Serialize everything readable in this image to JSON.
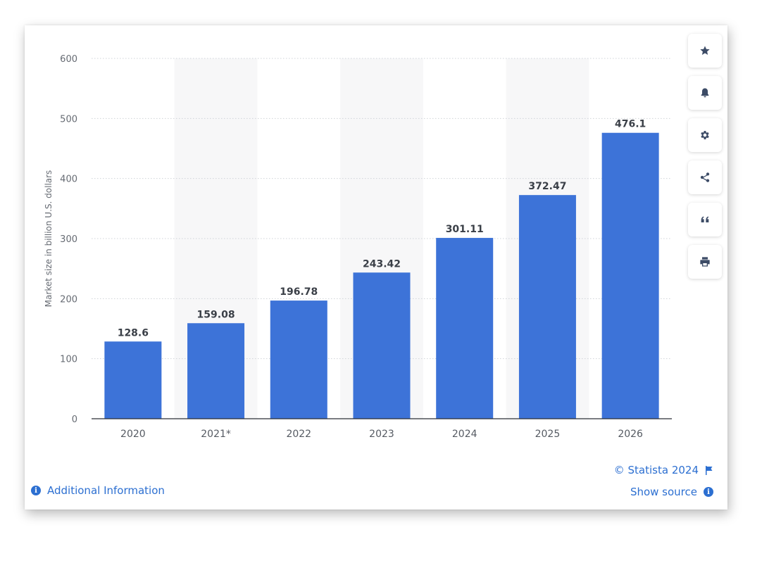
{
  "chart_data": {
    "type": "bar",
    "categories": [
      "2020",
      "2021*",
      "2022",
      "2023",
      "2024",
      "2025",
      "2026"
    ],
    "values": [
      128.6,
      159.08,
      196.78,
      243.42,
      301.11,
      372.47,
      476.1
    ],
    "value_labels": [
      "128.6",
      "159.08",
      "196.78",
      "243.42",
      "301.11",
      "372.47",
      "476.1"
    ],
    "title": "",
    "xlabel": "",
    "ylabel": "Market size in billion U.S. dollars",
    "ylim": [
      0,
      600
    ],
    "yticks": [
      0,
      100,
      200,
      300,
      400,
      500,
      600
    ],
    "grid": true,
    "bar_color": "#3d73d8",
    "band_color": "#f7f7f8"
  },
  "sidebar": {
    "buttons": [
      {
        "icon": "star-icon",
        "name": "favorite-button"
      },
      {
        "icon": "bell-icon",
        "name": "notification-button"
      },
      {
        "icon": "gear-icon",
        "name": "settings-button"
      },
      {
        "icon": "share-icon",
        "name": "share-button"
      },
      {
        "icon": "quote-icon",
        "name": "cite-button"
      },
      {
        "icon": "print-icon",
        "name": "print-button"
      }
    ]
  },
  "footer": {
    "additional_info": "Additional Information",
    "copyright": "© Statista 2024",
    "show_source": "Show source"
  },
  "colors": {
    "accent": "#2c6fd1",
    "icon": "#3c4b66"
  }
}
